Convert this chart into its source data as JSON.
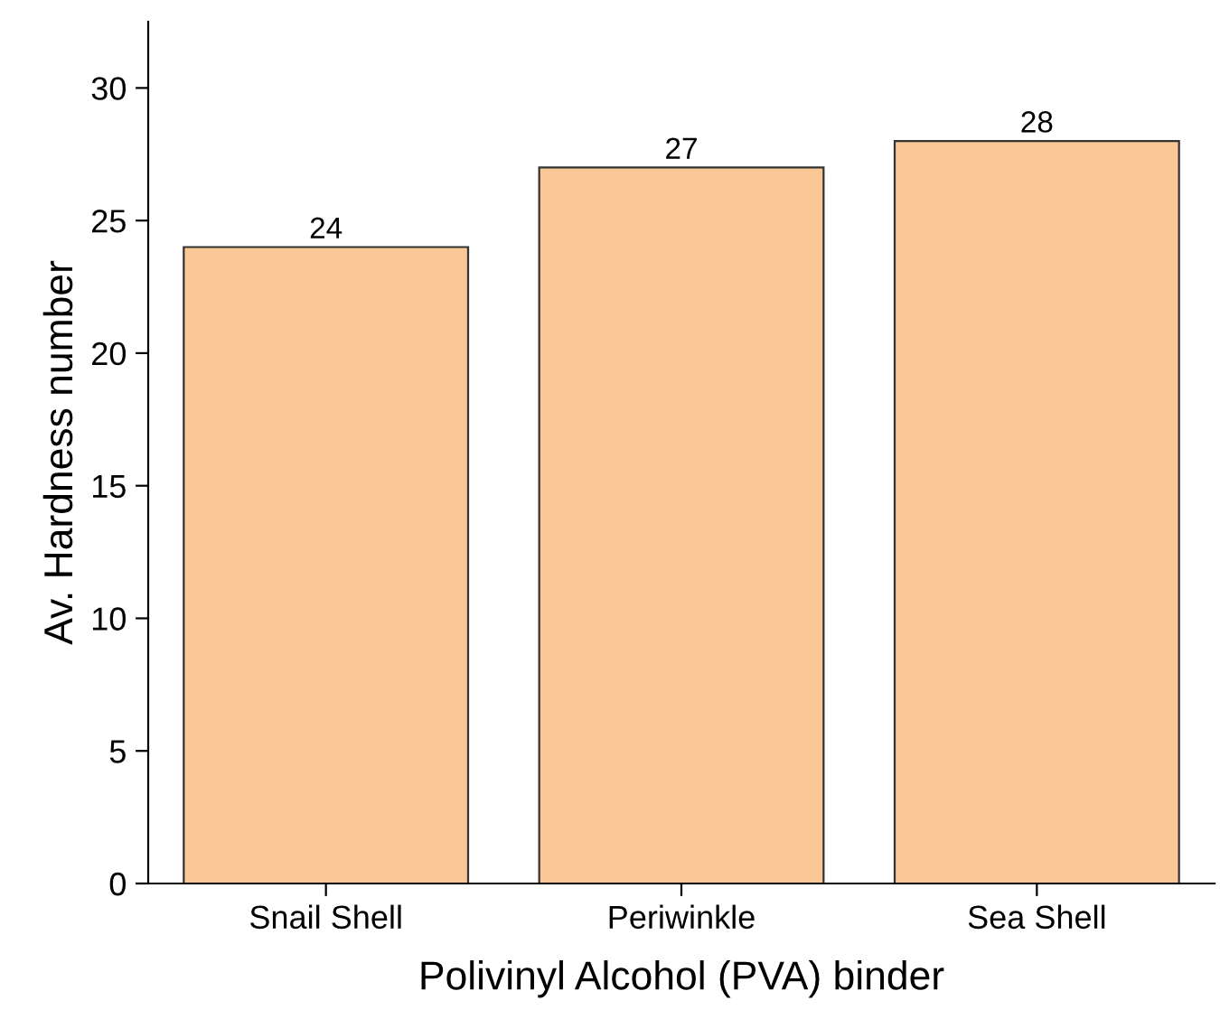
{
  "chart_data": {
    "type": "bar",
    "xlabel": "Polivinyl Alcohol (PVA) binder",
    "ylabel": "Av. Hardness number",
    "categories": [
      "Snail Shell",
      "Periwinkle",
      "Sea Shell"
    ],
    "values": [
      24,
      27,
      28
    ],
    "color": "#f9c896",
    "ylim": [
      0,
      32.5
    ],
    "yticks": [
      0,
      5,
      10,
      15,
      20,
      25,
      30
    ],
    "data_labels": true,
    "grid": false
  }
}
